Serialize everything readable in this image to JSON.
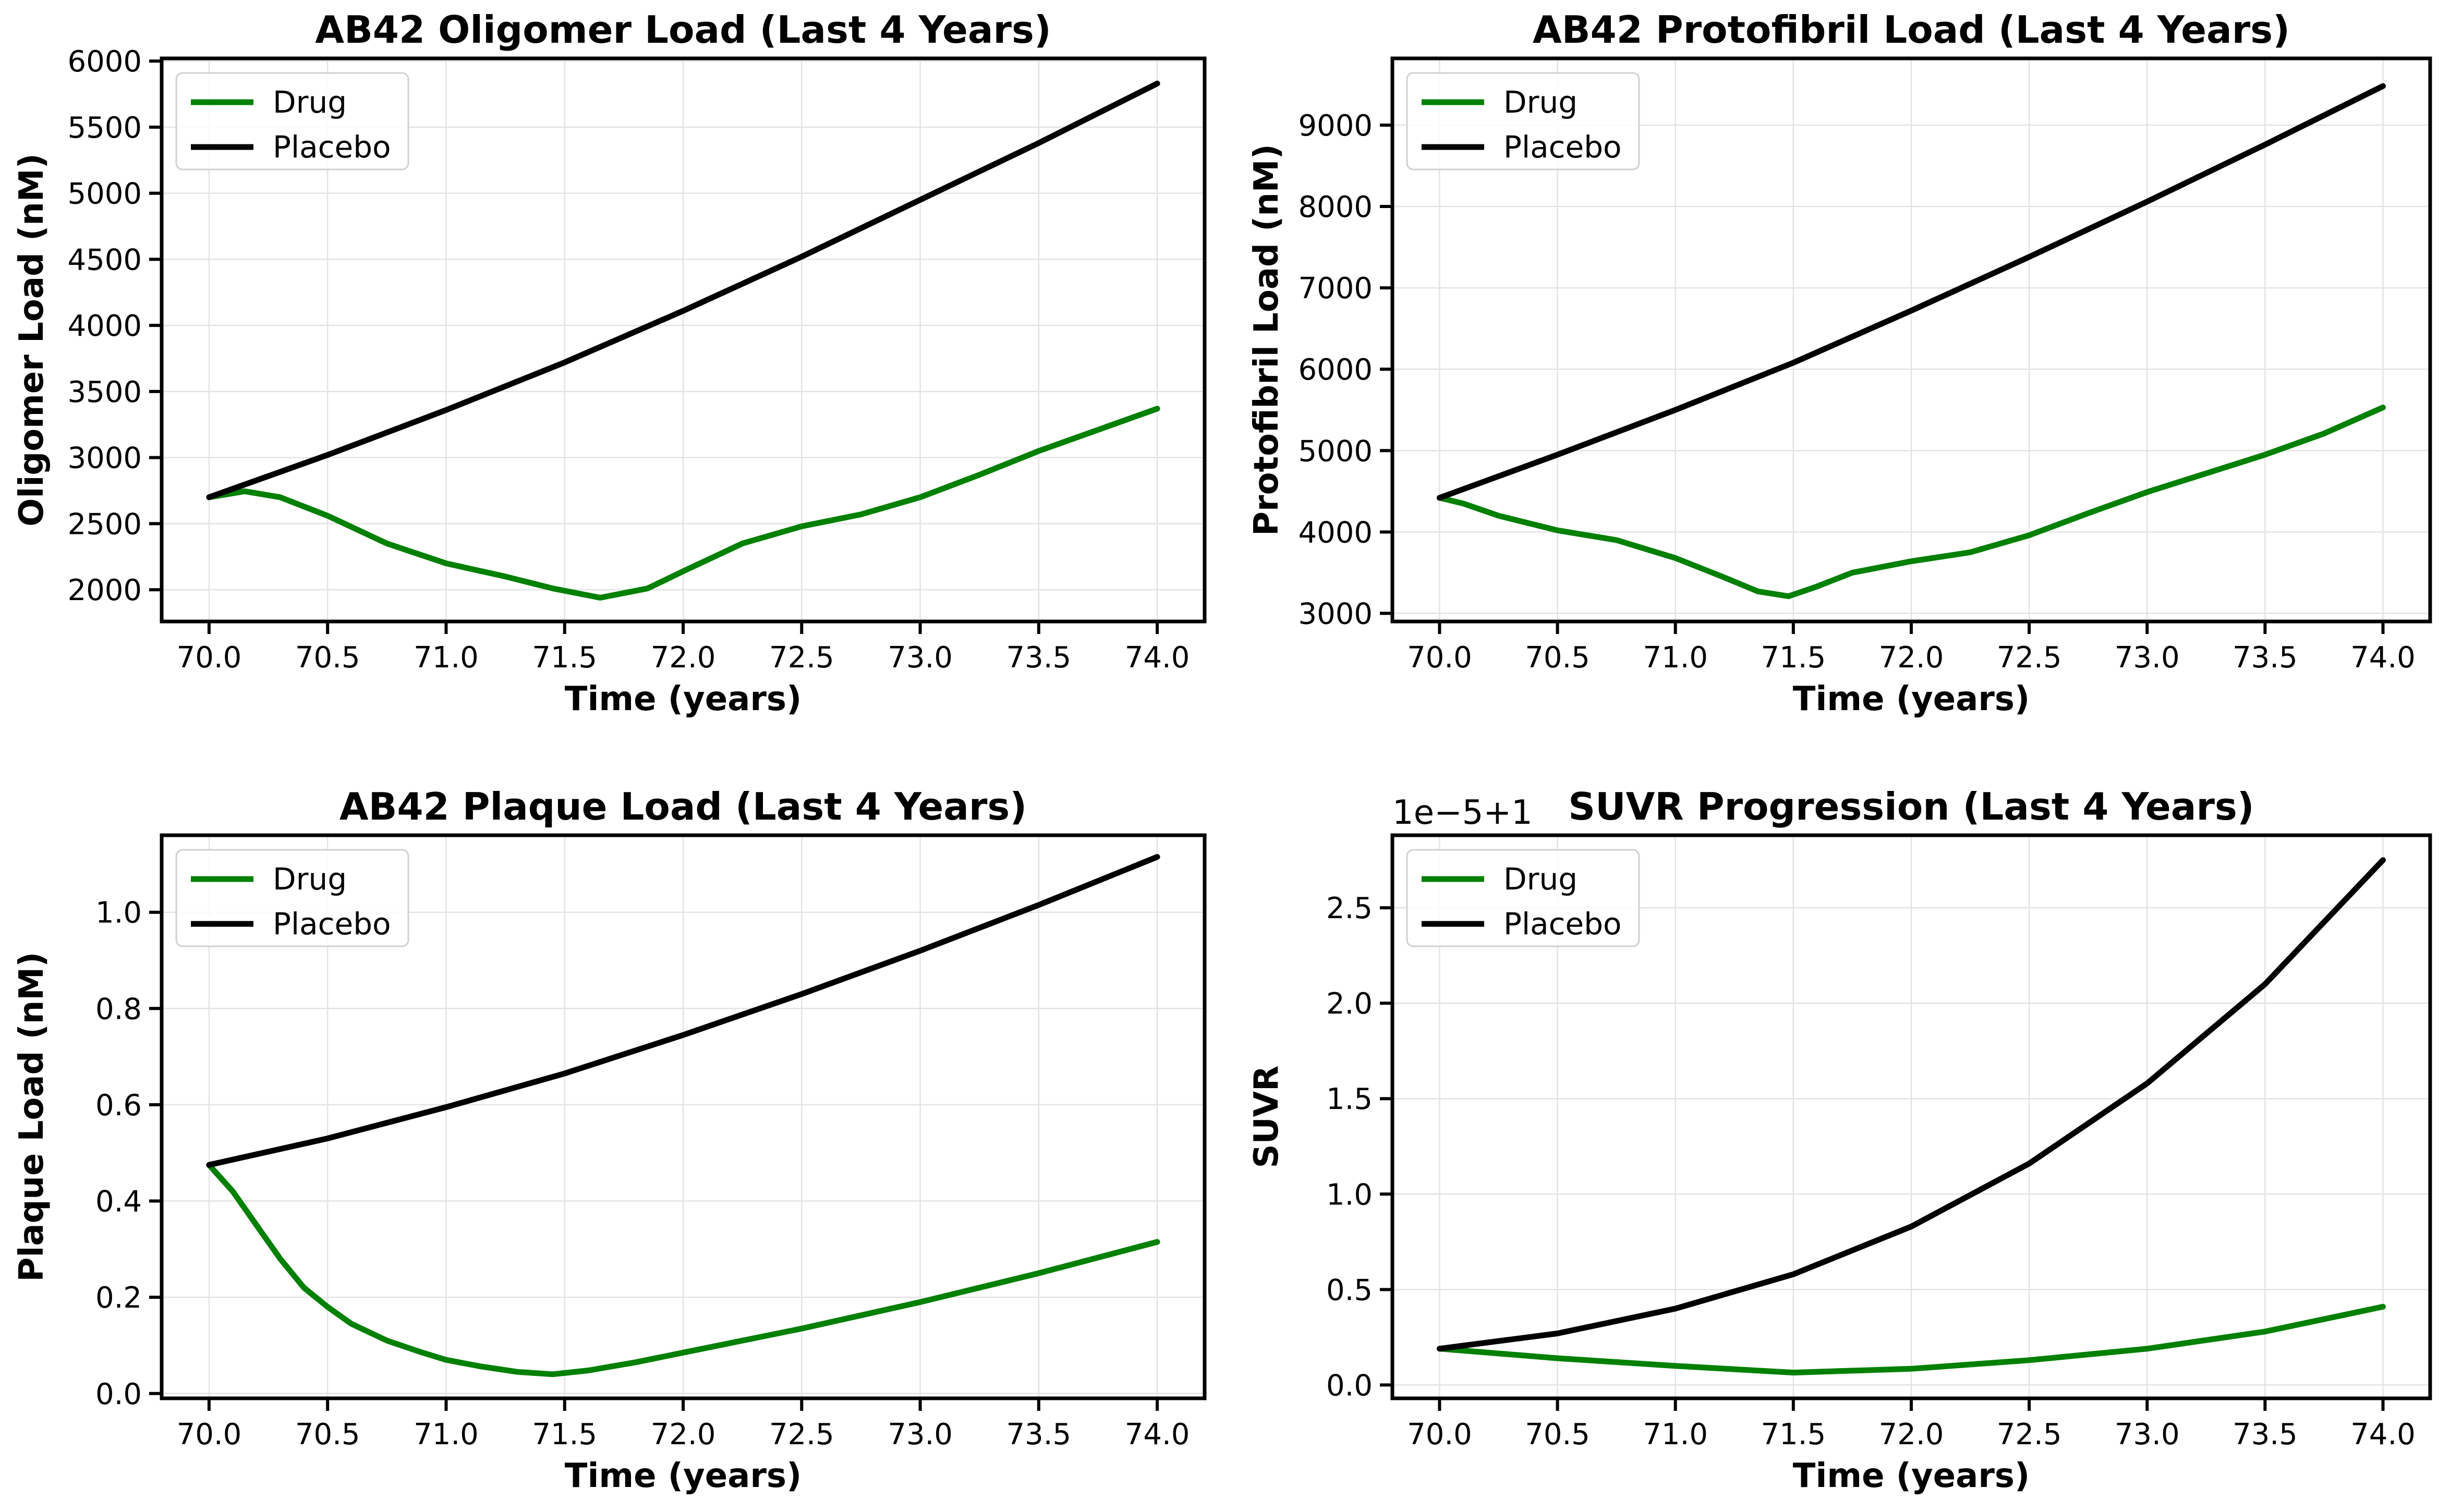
{
  "chart_data": [
    {
      "type": "line",
      "title": "AB42 Oligomer Load (Last 4 Years)",
      "xlabel": "Time (years)",
      "ylabel": "Oligomer Load (nM)",
      "xlim": [
        69.8,
        74.2
      ],
      "ylim": [
        1760,
        6020
      ],
      "xticks": [
        70.0,
        70.5,
        71.0,
        71.5,
        72.0,
        72.5,
        73.0,
        73.5,
        74.0
      ],
      "xtick_labels": [
        "70.0",
        "70.5",
        "71.0",
        "71.5",
        "72.0",
        "72.5",
        "73.0",
        "73.5",
        "74.0"
      ],
      "yticks": [
        2000,
        2500,
        3000,
        3500,
        4000,
        4500,
        5000,
        5500,
        6000
      ],
      "ytick_labels": [
        "2000",
        "2500",
        "3000",
        "3500",
        "4000",
        "4500",
        "5000",
        "5500",
        "6000"
      ],
      "grid": true,
      "legend": "top-left",
      "series": [
        {
          "name": "Drug",
          "color": "#008000",
          "x": [
            70.0,
            70.15,
            70.3,
            70.5,
            70.75,
            71.0,
            71.25,
            71.45,
            71.65,
            71.85,
            72.0,
            72.25,
            72.5,
            72.75,
            73.0,
            73.25,
            73.5,
            73.75,
            74.0
          ],
          "y": [
            2700,
            2745,
            2700,
            2560,
            2350,
            2200,
            2100,
            2010,
            1940,
            2010,
            2140,
            2350,
            2480,
            2570,
            2700,
            2870,
            3050,
            3210,
            3370
          ]
        },
        {
          "name": "Placebo",
          "color": "#000000",
          "x": [
            70.0,
            70.5,
            71.0,
            71.5,
            72.0,
            72.5,
            73.0,
            73.5,
            74.0
          ],
          "y": [
            2700,
            3020,
            3360,
            3720,
            4110,
            4520,
            4950,
            5380,
            5830
          ]
        }
      ]
    },
    {
      "type": "line",
      "title": "AB42 Protofibril Load (Last 4 Years)",
      "xlabel": "Time (years)",
      "ylabel": "Protofibril Load (nM)",
      "xlim": [
        69.8,
        74.2
      ],
      "ylim": [
        2900,
        9820
      ],
      "xticks": [
        70.0,
        70.5,
        71.0,
        71.5,
        72.0,
        72.5,
        73.0,
        73.5,
        74.0
      ],
      "xtick_labels": [
        "70.0",
        "70.5",
        "71.0",
        "71.5",
        "72.0",
        "72.5",
        "73.0",
        "73.5",
        "74.0"
      ],
      "yticks": [
        3000,
        4000,
        5000,
        6000,
        7000,
        8000,
        9000
      ],
      "ytick_labels": [
        "3000",
        "4000",
        "5000",
        "6000",
        "7000",
        "8000",
        "9000"
      ],
      "grid": true,
      "legend": "top-left",
      "series": [
        {
          "name": "Drug",
          "color": "#008000",
          "x": [
            70.0,
            70.1,
            70.25,
            70.5,
            70.75,
            71.0,
            71.2,
            71.35,
            71.48,
            71.6,
            71.75,
            72.0,
            72.25,
            72.5,
            72.75,
            73.0,
            73.25,
            73.5,
            73.75,
            74.0
          ],
          "y": [
            4420,
            4350,
            4200,
            4020,
            3900,
            3680,
            3450,
            3270,
            3210,
            3330,
            3500,
            3640,
            3750,
            3960,
            4230,
            4490,
            4720,
            4950,
            5210,
            5530
          ]
        },
        {
          "name": "Placebo",
          "color": "#000000",
          "x": [
            70.0,
            70.5,
            71.0,
            71.5,
            72.0,
            72.5,
            73.0,
            73.5,
            74.0
          ],
          "y": [
            4420,
            4950,
            5500,
            6080,
            6720,
            7380,
            8060,
            8760,
            9480
          ]
        }
      ]
    },
    {
      "type": "line",
      "title": "AB42 Plaque Load (Last 4 Years)",
      "xlabel": "Time (years)",
      "ylabel": "Plaque Load (nM)",
      "xlim": [
        69.8,
        74.2
      ],
      "ylim": [
        -0.01,
        1.16
      ],
      "xticks": [
        70.0,
        70.5,
        71.0,
        71.5,
        72.0,
        72.5,
        73.0,
        73.5,
        74.0
      ],
      "xtick_labels": [
        "70.0",
        "70.5",
        "71.0",
        "71.5",
        "72.0",
        "72.5",
        "73.0",
        "73.5",
        "74.0"
      ],
      "yticks": [
        0.0,
        0.2,
        0.4,
        0.6,
        0.8,
        1.0
      ],
      "ytick_labels": [
        "0.0",
        "0.2",
        "0.4",
        "0.6",
        "0.8",
        "1.0"
      ],
      "grid": true,
      "legend": "top-left",
      "series": [
        {
          "name": "Drug",
          "color": "#008000",
          "x": [
            70.0,
            70.1,
            70.2,
            70.3,
            70.4,
            70.5,
            70.6,
            70.75,
            70.9,
            71.0,
            71.15,
            71.3,
            71.45,
            71.6,
            71.8,
            72.0,
            72.5,
            73.0,
            73.5,
            74.0
          ],
          "y": [
            0.475,
            0.42,
            0.35,
            0.28,
            0.22,
            0.18,
            0.145,
            0.11,
            0.085,
            0.07,
            0.056,
            0.045,
            0.04,
            0.048,
            0.065,
            0.085,
            0.135,
            0.19,
            0.25,
            0.315
          ]
        },
        {
          "name": "Placebo",
          "color": "#000000",
          "x": [
            70.0,
            70.5,
            71.0,
            71.5,
            72.0,
            72.5,
            73.0,
            73.5,
            74.0
          ],
          "y": [
            0.475,
            0.53,
            0.595,
            0.665,
            0.745,
            0.83,
            0.92,
            1.015,
            1.115
          ]
        }
      ]
    },
    {
      "type": "line",
      "title": "SUVR Progression (Last 4 Years)",
      "xlabel": "Time (years)",
      "ylabel": "SUVR",
      "offset_text": "1e−5+1",
      "xlim": [
        69.8,
        74.2
      ],
      "ylim": [
        -0.07,
        2.88
      ],
      "xticks": [
        70.0,
        70.5,
        71.0,
        71.5,
        72.0,
        72.5,
        73.0,
        73.5,
        74.0
      ],
      "xtick_labels": [
        "70.0",
        "70.5",
        "71.0",
        "71.5",
        "72.0",
        "72.5",
        "73.0",
        "73.5",
        "74.0"
      ],
      "yticks": [
        0.0,
        0.5,
        1.0,
        1.5,
        2.0,
        2.5
      ],
      "ytick_labels": [
        "0.0",
        "0.5",
        "1.0",
        "1.5",
        "2.0",
        "2.5"
      ],
      "grid": true,
      "legend": "top-left",
      "series": [
        {
          "name": "Drug",
          "color": "#008000",
          "x": [
            70.0,
            70.5,
            71.0,
            71.5,
            72.0,
            72.5,
            73.0,
            73.5,
            74.0
          ],
          "y": [
            0.19,
            0.14,
            0.1,
            0.065,
            0.085,
            0.13,
            0.19,
            0.28,
            0.41
          ]
        },
        {
          "name": "Placebo",
          "color": "#000000",
          "x": [
            70.0,
            70.5,
            71.0,
            71.5,
            72.0,
            72.5,
            73.0,
            73.5,
            74.0
          ],
          "y": [
            0.19,
            0.27,
            0.4,
            0.58,
            0.83,
            1.16,
            1.58,
            2.1,
            2.75
          ]
        }
      ]
    }
  ]
}
